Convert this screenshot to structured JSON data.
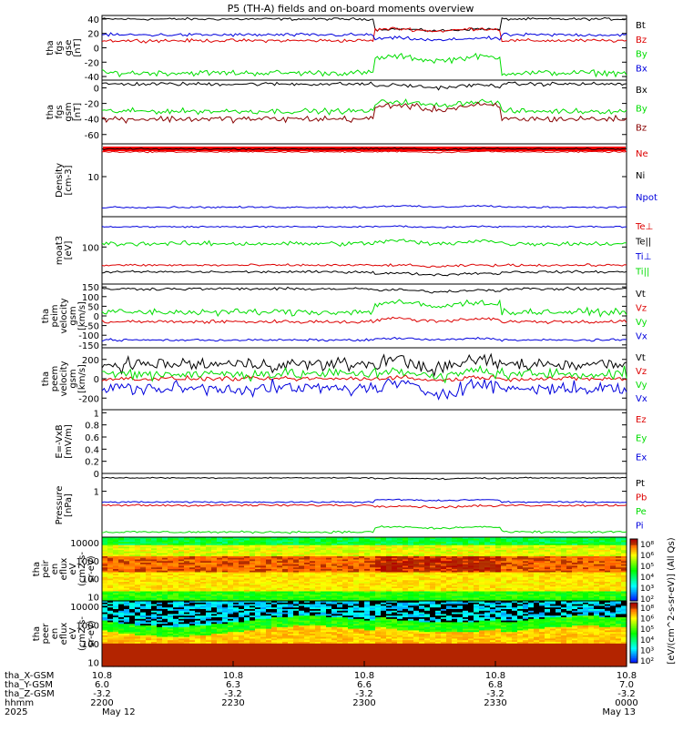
{
  "title": "P5 (TH-A) fields and on-board moments overview",
  "chart_data": [
    {
      "type": "line",
      "ylabel": [
        "tha",
        "fgs",
        "gse",
        "[nT]"
      ],
      "ylim": [
        -45,
        45
      ],
      "yticks": [
        40,
        20,
        0,
        -20,
        -40
      ],
      "series": [
        {
          "name": "Bt",
          "color": "#000000",
          "pre": 40,
          "post": 25,
          "noise": 1.5
        },
        {
          "name": "Bz",
          "color": "#dd0000",
          "pre": 10,
          "post": 25,
          "noise": 2.0
        },
        {
          "name": "By",
          "color": "#00dd00",
          "pre": -35,
          "post": -15,
          "noise": 3.5
        },
        {
          "name": "Bx",
          "color": "#0000dd",
          "pre": 18,
          "post": 12,
          "noise": 2.0
        }
      ]
    },
    {
      "type": "line",
      "ylabel": [
        "tha",
        "fgs",
        "gsm",
        "[nT]"
      ],
      "ylim": [
        -72,
        10
      ],
      "yticks": [
        0,
        -20,
        -40,
        -60
      ],
      "series": [
        {
          "name": "Bx",
          "color": "#000000",
          "pre": 5,
          "post": 2,
          "noise": 2.0
        },
        {
          "name": "By",
          "color": "#00dd00",
          "pre": -30,
          "post": -20,
          "noise": 3.0
        },
        {
          "name": "Bz",
          "color": "#880000",
          "pre": -40,
          "post": -25,
          "noise": 3.5
        }
      ]
    },
    {
      "type": "line",
      "ylabel": [
        "Density",
        "[cm-3]"
      ],
      "yscale": "log",
      "yticks": [
        10
      ],
      "series": [
        {
          "name": "Ne",
          "color": "#dd0000",
          "pre": 0.89,
          "post": 0.89,
          "noise": 0.008
        },
        {
          "name": "Ni",
          "color": "#000000",
          "pre": 0.93,
          "post": 0.93,
          "noise": 0.008
        },
        {
          "name": "Npot",
          "color": "#0000dd",
          "pre": 0.13,
          "post": 0.14,
          "noise": 0.01
        }
      ]
    },
    {
      "type": "line",
      "ylabel": [
        "moat3",
        "[eV]"
      ],
      "yscale": "log",
      "yticks": [
        100
      ],
      "series": [
        {
          "name": "Te⊥",
          "color": "#dd0000",
          "pre": 0.28,
          "post": 0.27,
          "noise": 0.015
        },
        {
          "name": "Te||",
          "color": "#000000",
          "pre": 0.18,
          "post": 0.15,
          "noise": 0.015
        },
        {
          "name": "Ti⊥",
          "color": "#0000dd",
          "pre": 0.85,
          "post": 0.85,
          "noise": 0.01
        },
        {
          "name": "Ti||",
          "color": "#00dd00",
          "pre": 0.6,
          "post": 0.62,
          "noise": 0.03
        }
      ]
    },
    {
      "type": "line",
      "ylabel": [
        "tha",
        "peim",
        "velocity",
        "gsm",
        "[km/s]"
      ],
      "ylim": [
        -165,
        165
      ],
      "yticks": [
        150,
        100,
        50,
        0,
        -50,
        -100,
        -150
      ],
      "series": [
        {
          "name": "Vt",
          "color": "#000000",
          "pre": 140,
          "post": 130,
          "noise": 6
        },
        {
          "name": "Vz",
          "color": "#dd0000",
          "pre": -30,
          "post": -20,
          "noise": 8
        },
        {
          "name": "Vy",
          "color": "#00dd00",
          "pre": 20,
          "post": 60,
          "noise": 15
        },
        {
          "name": "Vx",
          "color": "#0000dd",
          "pre": -125,
          "post": -120,
          "noise": 5
        }
      ]
    },
    {
      "type": "line",
      "ylabel": [
        "tha",
        "peem",
        "velocity",
        "gsm",
        "[km/s]"
      ],
      "ylim": [
        -320,
        320
      ],
      "yticks": [
        200,
        0,
        -200
      ],
      "series": [
        {
          "name": "Vt",
          "color": "#000000",
          "pre": 150,
          "post": 150,
          "noise": 60
        },
        {
          "name": "Vz",
          "color": "#dd0000",
          "pre": 0,
          "post": 0,
          "noise": 20
        },
        {
          "name": "Vy",
          "color": "#00dd00",
          "pre": 50,
          "post": 50,
          "noise": 50
        },
        {
          "name": "Vx",
          "color": "#0000dd",
          "pre": -100,
          "post": -100,
          "noise": 60
        }
      ]
    },
    {
      "type": "line",
      "ylabel": [
        "E=-VxB",
        "[mV/m]"
      ],
      "ylim": [
        0,
        1.05
      ],
      "yticks": [
        1.0,
        0.8,
        0.6,
        0.4,
        0.2,
        0.0
      ],
      "series": [
        {
          "name": "Ez",
          "color": "#dd0000"
        },
        {
          "name": "Ey",
          "color": "#00dd00"
        },
        {
          "name": "Ex",
          "color": "#0000dd"
        }
      ]
    },
    {
      "type": "line",
      "ylabel": [
        "Pressure",
        "[nPa]"
      ],
      "yscale": "log",
      "yticks": [
        1
      ],
      "series": [
        {
          "name": "Pt",
          "color": "#000000",
          "pre": 0.93,
          "post": 0.92,
          "noise": 0.008
        },
        {
          "name": "Pb",
          "color": "#dd0000",
          "pre": 0.5,
          "post": 0.48,
          "noise": 0.015
        },
        {
          "name": "Pe",
          "color": "#00dd00",
          "pre": 0.08,
          "post": 0.15,
          "noise": 0.015
        },
        {
          "name": "Pi",
          "color": "#0000dd",
          "pre": 0.55,
          "post": 0.58,
          "noise": 0.01
        }
      ]
    },
    {
      "type": "heatmap",
      "ylabel": [
        "tha",
        "peir",
        "en",
        "eflux",
        "eV",
        "(cm2-s-",
        "sr-eV)"
      ],
      "yscale": "log",
      "yticks": [
        10000,
        1000,
        100,
        10
      ]
    },
    {
      "type": "heatmap",
      "ylabel": [
        "tha",
        "peer",
        "en",
        "eflux",
        "eV",
        "(cm2-s-",
        "sr-eV)"
      ],
      "yscale": "log",
      "yticks": [
        10000,
        1000,
        100,
        10
      ]
    }
  ],
  "colorbar": {
    "label": "[eV/(cm^2-s-sr-eV)] (All Qs)",
    "ticks": [
      "10⁸",
      "10⁶",
      "10⁵",
      "10⁴",
      "10³",
      "10²"
    ],
    "ticks2": [
      "10⁸",
      "10⁶",
      "10⁵",
      "10⁴",
      "10³",
      "10²"
    ]
  },
  "xaxis": {
    "row_labels": [
      "tha_X-GSM",
      "tha_Y-GSM",
      "tha_Z-GSM",
      "hhmm",
      "2025"
    ],
    "ticks": [
      {
        "x": "10.8",
        "y": "6.0",
        "z": "-3.2",
        "hhmm": "2200",
        "date": "May 12"
      },
      {
        "x": "10.8",
        "y": "6.3",
        "z": "-3.2",
        "hhmm": "2230",
        "date": ""
      },
      {
        "x": "10.8",
        "y": "6.6",
        "z": "-3.2",
        "hhmm": "2300",
        "date": ""
      },
      {
        "x": "10.8",
        "y": "6.8",
        "z": "-3.2",
        "hhmm": "2330",
        "date": ""
      },
      {
        "x": "10.8",
        "y": "7.0",
        "z": "-3.2",
        "hhmm": "0000",
        "date": "May 13"
      }
    ]
  }
}
